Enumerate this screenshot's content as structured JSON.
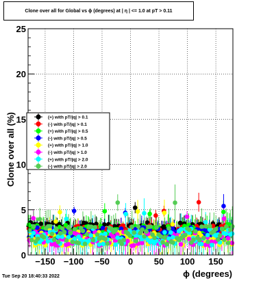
{
  "title": "Clone  over all for Global vs ϕ (degrees) at |  η | <= 1.0 at pT > 0.11",
  "date_stamp": "Tue Sep 20 18:40:33 2022",
  "chart_data": {
    "type": "scatter",
    "title": "Clone  over all for Global vs ϕ (degrees) at |  η | <= 1.0 at pT > 0.11",
    "xlabel": "ϕ (degrees)",
    "ylabel": "Clone  over all (%)",
    "xlim": [
      -180,
      180
    ],
    "ylim": [
      0,
      25
    ],
    "x_ticks": [
      -150,
      -100,
      -50,
      0,
      50,
      100,
      150
    ],
    "y_ticks": [
      0,
      5,
      10,
      15,
      20,
      25
    ],
    "grid": true,
    "legend_position": "left-middle",
    "bin_count": 100,
    "series": [
      {
        "name": "(+) with pT/|q| > 0.1",
        "color": "#000000",
        "mean": 3.0,
        "spread": 0.6,
        "error": 0.7
      },
      {
        "name": "(-) with pT/|q| > 0.1",
        "color": "#ff0000",
        "mean": 2.7,
        "spread": 0.6,
        "error": 0.7
      },
      {
        "name": "(+) with pT/|q| > 0.5",
        "color": "#00ff00",
        "mean": 2.7,
        "spread": 0.7,
        "error": 0.9
      },
      {
        "name": "(-) with pT/|q| > 0.5",
        "color": "#0000ff",
        "mean": 2.5,
        "spread": 0.6,
        "error": 0.9
      },
      {
        "name": "(+) with pT/|q| > 1.0",
        "color": "#ffff00",
        "mean": 1.8,
        "spread": 0.8,
        "error": 1.1
      },
      {
        "name": "(-) with pT/|q| > 1.0",
        "color": "#ff00ff",
        "mean": 1.8,
        "spread": 0.8,
        "error": 1.1
      },
      {
        "name": "(+) with pT/|q| > 2.0",
        "color": "#00ffff",
        "mean": 2.0,
        "spread": 0.9,
        "error": 1.3
      },
      {
        "name": "(-) with pT/|q| > 2.0",
        "color": "#55cc55",
        "mean": 2.2,
        "spread": 1.0,
        "error": 1.5
      }
    ]
  }
}
